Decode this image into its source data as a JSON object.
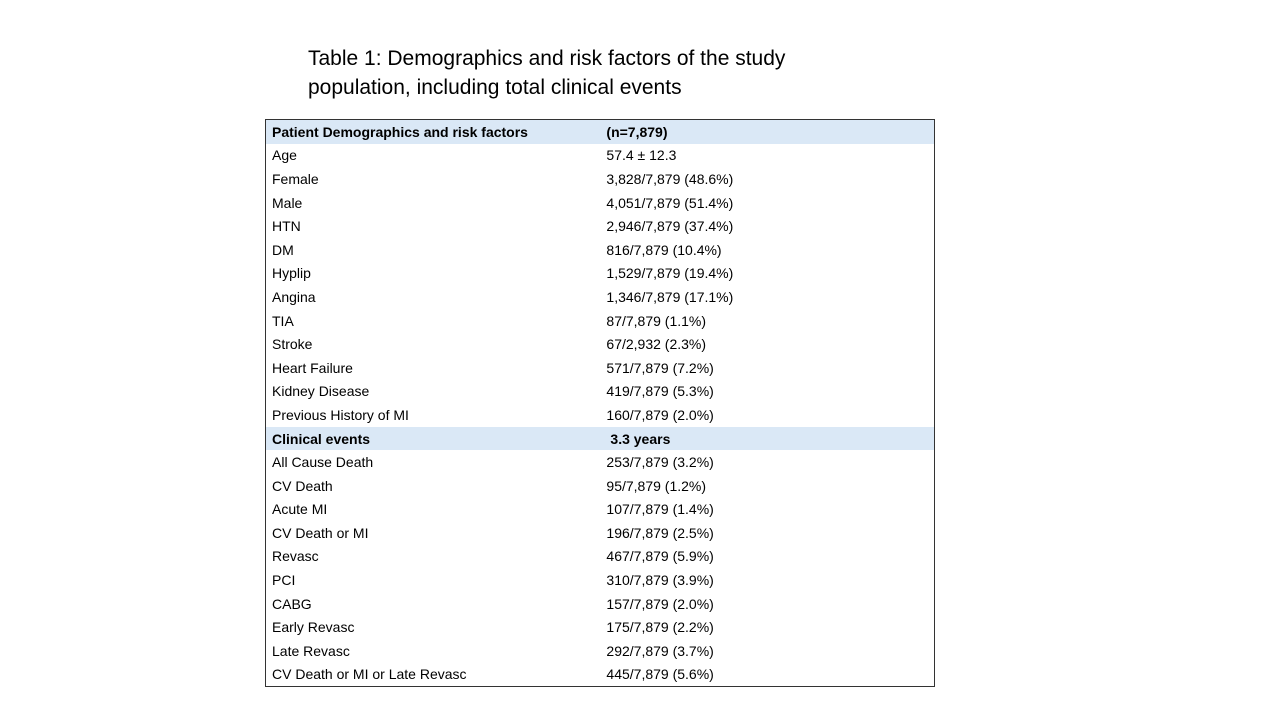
{
  "title": {
    "line1": "Table 1:  Demographics and risk factors of the study",
    "line2": "population, including total clinical events"
  },
  "demographics": {
    "header_label": "Patient Demographics and risk factors",
    "header_value": "(n=7,879)",
    "rows": [
      {
        "label": "Age",
        "value": "57.4 ± 12.3"
      },
      {
        "label": "Female",
        "value": "3,828/7,879 (48.6%)"
      },
      {
        "label": "Male",
        "value": "4,051/7,879 (51.4%)"
      },
      {
        "label": "HTN",
        "value": "2,946/7,879 (37.4%)"
      },
      {
        "label": "DM",
        "value": "816/7,879 (10.4%)"
      },
      {
        "label": "Hyplip",
        "value": "1,529/7,879 (19.4%)"
      },
      {
        "label": "Angina",
        "value": "1,346/7,879 (17.1%)"
      },
      {
        "label": "TIA",
        "value": "87/7,879 (1.1%)"
      },
      {
        "label": "Stroke",
        "value": "67/2,932 (2.3%)"
      },
      {
        "label": "Heart Failure",
        "value": "571/7,879 (7.2%)"
      },
      {
        "label": "Kidney Disease",
        "value": "419/7,879 (5.3%)"
      },
      {
        "label": "Previous History of MI",
        "value": "160/7,879 (2.0%)"
      }
    ]
  },
  "clinical_events": {
    "header_label": "Clinical events",
    "header_value": "3.3 years",
    "rows": [
      {
        "label": "All Cause Death",
        "value": "253/7,879 (3.2%)"
      },
      {
        "label": "CV Death",
        "value": "95/7,879 (1.2%)"
      },
      {
        "label": "Acute MI",
        "value": "107/7,879 (1.4%)"
      },
      {
        "label": "CV Death or MI",
        "value": "196/7,879 (2.5%)"
      },
      {
        "label": "Revasc",
        "value": "467/7,879 (5.9%)"
      },
      {
        "label": "PCI",
        "value": "310/7,879 (3.9%)"
      },
      {
        "label": "CABG",
        "value": "157/7,879 (2.0%)"
      },
      {
        "label": "Early Revasc",
        "value": "175/7,879 (2.2%)"
      },
      {
        "label": "Late Revasc",
        "value": "292/7,879 (3.7%)"
      },
      {
        "label": "CV Death or MI or Late Revasc",
        "value": "445/7,879 (5.6%)"
      }
    ]
  }
}
